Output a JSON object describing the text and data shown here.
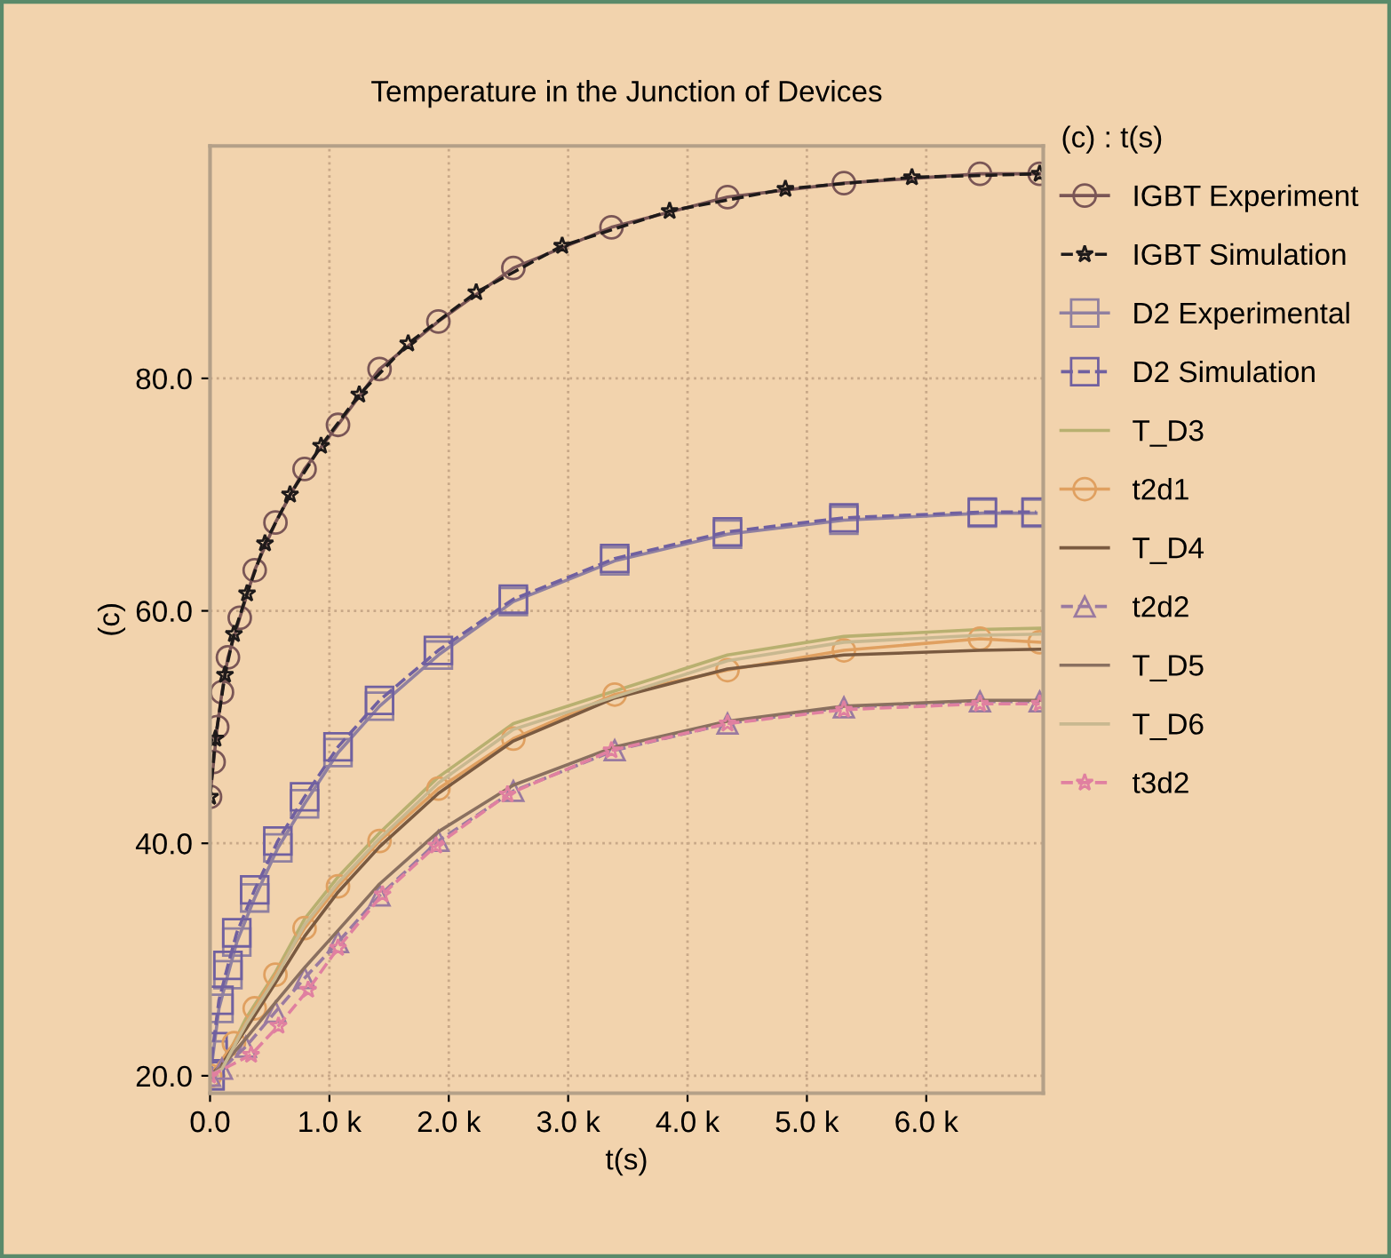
{
  "chart_data": {
    "type": "line",
    "title": "Temperature in the Junction of Devices",
    "xlabel": "t(s)",
    "ylabel": "(c)",
    "legend_title": "(c) : t(s)",
    "xlim": [
      0,
      6980
    ],
    "ylim": [
      18.5,
      100
    ],
    "xticks": [
      {
        "value": 0,
        "label": "0.0"
      },
      {
        "value": 1000,
        "label": "1.0 k"
      },
      {
        "value": 2000,
        "label": "2.0 k"
      },
      {
        "value": 3000,
        "label": "3.0 k"
      },
      {
        "value": 4000,
        "label": "4.0 k"
      },
      {
        "value": 5000,
        "label": "5.0 k"
      },
      {
        "value": 6000,
        "label": "6.0 k"
      }
    ],
    "yticks": [
      {
        "value": 20,
        "label": "20.0"
      },
      {
        "value": 40,
        "label": "40.0"
      },
      {
        "value": 60,
        "label": "60.0"
      },
      {
        "value": 80,
        "label": "80.0"
      }
    ],
    "grid": true,
    "legend": "right",
    "series": [
      {
        "name": "IGBT Experiment",
        "color": "#7a5656",
        "marker": "circle",
        "line_style": "solid",
        "x": [
          0,
          30,
          60,
          100,
          150,
          249,
          374,
          548,
          792,
          1072,
          1420,
          1913,
          2541,
          3363,
          4335,
          5310,
          6450,
          6950
        ],
        "values": [
          44,
          47,
          50,
          53,
          56,
          59.4,
          63.5,
          67.6,
          72.2,
          76.0,
          80.8,
          84.9,
          89.5,
          93.0,
          95.6,
          96.8,
          97.6,
          97.6
        ]
      },
      {
        "name": "IGBT Simulation",
        "color": "#1e1a1a",
        "marker": "star",
        "line_style": "dashed",
        "x": [
          0,
          45,
          125,
          200,
          310,
          460,
          670,
          930,
          1250,
          1660,
          2230,
          2950,
          3850,
          4820,
          5880,
          6950
        ],
        "values": [
          44,
          49,
          54.5,
          58,
          61.5,
          65.8,
          70,
          74.2,
          78.6,
          83,
          87.4,
          91.4,
          94.4,
          96.3,
          97.3,
          97.6
        ]
      },
      {
        "name": "D2 Experimental",
        "color": "#9080a0",
        "marker": "square",
        "line_style": "solid",
        "x": [
          0,
          25,
          75,
          150,
          224,
          374,
          568,
          792,
          1072,
          1420,
          1913,
          2541,
          3390,
          4335,
          5310,
          6470,
          6920
        ],
        "values": [
          20,
          21.8,
          25.8,
          28.7,
          31.5,
          35.3,
          39.6,
          43.4,
          47.8,
          51.8,
          56.2,
          60.8,
          64.3,
          66.6,
          67.8,
          68.4,
          68.4
        ]
      },
      {
        "name": "D2 Simulation",
        "color": "#7060a0",
        "marker": "square",
        "line_style": "dashed",
        "x": [
          0,
          25,
          75,
          150,
          224,
          374,
          568,
          792,
          1072,
          1420,
          1913,
          2541,
          3390,
          4335,
          5310,
          6470,
          6920
        ],
        "values": [
          20,
          22.5,
          26.5,
          29.5,
          32.3,
          36.0,
          40.2,
          44.0,
          48.3,
          52.3,
          56.6,
          61.0,
          64.5,
          66.8,
          68.0,
          68.5,
          68.5
        ]
      },
      {
        "name": "T_D3",
        "color": "#b8b070",
        "marker": "none",
        "line_style": "solid",
        "x": [
          0,
          100,
          299,
          548,
          792,
          1072,
          1420,
          1913,
          2541,
          3390,
          4335,
          5310,
          6450,
          6950
        ],
        "values": [
          20,
          20.8,
          24.9,
          28.9,
          33.5,
          37.1,
          40.9,
          45.7,
          50.3,
          53.1,
          56.2,
          57.8,
          58.4,
          58.5
        ]
      },
      {
        "name": "t2d1",
        "color": "#e0a060",
        "marker": "circle",
        "line_style": "solid",
        "x": [
          0,
          200,
          374,
          548,
          792,
          1072,
          1420,
          1913,
          2541,
          3390,
          4335,
          5310,
          6450,
          6950
        ],
        "values": [
          20,
          22.8,
          25.8,
          28.7,
          32.7,
          36.3,
          40.2,
          44.7,
          49.0,
          52.8,
          54.9,
          56.6,
          57.6,
          57.3
        ]
      },
      {
        "name": "T_D4",
        "color": "#7a5a40",
        "marker": "none",
        "line_style": "solid",
        "x": [
          0,
          100,
          300,
          548,
          792,
          1072,
          1420,
          1913,
          2541,
          3390,
          4335,
          5310,
          6450,
          6950
        ],
        "values": [
          20,
          21.0,
          24.0,
          28.0,
          32.0,
          35.8,
          39.7,
          44.3,
          48.8,
          52.5,
          55.0,
          56.2,
          56.6,
          56.7
        ]
      },
      {
        "name": "t2d2",
        "color": "#9a7aa0",
        "marker": "triangle",
        "line_style": "dashed",
        "x": [
          0,
          100,
          300,
          548,
          792,
          1072,
          1420,
          1913,
          2541,
          3390,
          4335,
          5310,
          6450,
          6950
        ],
        "values": [
          20,
          20.6,
          22.5,
          25.5,
          28.4,
          31.5,
          35.5,
          40.2,
          44.5,
          48.0,
          50.3,
          51.7,
          52.2,
          52.2
        ]
      },
      {
        "name": "T_D5",
        "color": "#8a7060",
        "marker": "none",
        "line_style": "solid",
        "x": [
          0,
          100,
          300,
          548,
          792,
          1072,
          1420,
          1913,
          2541,
          3390,
          4335,
          5310,
          6450,
          6950
        ],
        "values": [
          20,
          20.8,
          23.2,
          26.3,
          29.3,
          32.5,
          36.5,
          41.0,
          45.0,
          48.3,
          50.5,
          51.8,
          52.3,
          52.3
        ]
      },
      {
        "name": "T_D6",
        "color": "#c8b890",
        "marker": "none",
        "line_style": "solid",
        "x": [
          0,
          100,
          299,
          548,
          792,
          1072,
          1420,
          1913,
          2541,
          3390,
          4335,
          5310,
          6450,
          6950
        ],
        "values": [
          20,
          20.6,
          24.4,
          28.4,
          33.0,
          36.6,
          40.4,
          45.2,
          49.8,
          52.6,
          55.7,
          57.3,
          57.9,
          58.0
        ]
      },
      {
        "name": "t3d2",
        "color": "#e080a0",
        "marker": "star",
        "line_style": "dashed",
        "x": [
          0,
          344,
          573,
          822,
          1072,
          1445,
          1894,
          2492,
          3363,
          4335,
          5310,
          6450,
          6950
        ],
        "values": [
          20,
          21.8,
          24.3,
          27.4,
          31.0,
          35.6,
          39.8,
          44.2,
          48.0,
          50.3,
          51.5,
          52.0,
          52.0
        ]
      }
    ]
  }
}
